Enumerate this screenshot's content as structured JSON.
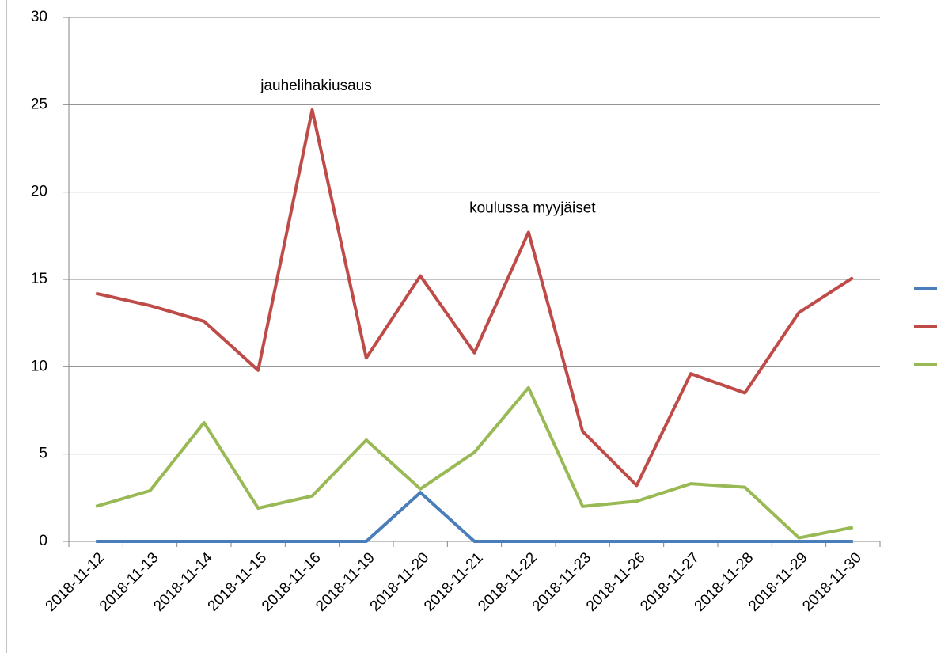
{
  "chart_data": {
    "type": "line",
    "categories": [
      "2018-11-12",
      "2018-11-13",
      "2018-11-14",
      "2018-11-15",
      "2018-11-16",
      "2018-11-19",
      "2018-11-20",
      "2018-11-21",
      "2018-11-22",
      "2018-11-23",
      "2018-11-26",
      "2018-11-27",
      "2018-11-28",
      "2018-11-29",
      "2018-11-30"
    ],
    "series": [
      {
        "color": "#4a7ebb",
        "values": [
          0,
          0,
          0,
          0,
          0,
          0,
          2.8,
          0,
          0,
          0,
          0,
          0,
          0,
          0,
          0
        ]
      },
      {
        "color": "#be4b48",
        "values": [
          14.2,
          13.5,
          12.6,
          9.8,
          24.7,
          10.5,
          15.2,
          10.8,
          17.7,
          6.3,
          3.2,
          9.6,
          8.5,
          13.1,
          15.1
        ]
      },
      {
        "color": "#98b954",
        "values": [
          2.0,
          2.9,
          6.8,
          1.9,
          2.6,
          5.8,
          3.0,
          5.1,
          8.8,
          2.0,
          2.3,
          3.3,
          3.1,
          0.2,
          0.8
        ]
      }
    ],
    "annotations": [
      {
        "text": "jauhelihakiusaus",
        "x": "2018-11-16"
      },
      {
        "text": "koulussa myyjäiset",
        "x": "2018-11-22"
      }
    ],
    "ylim": [
      0,
      30
    ],
    "yticks": [
      0,
      5,
      10,
      15,
      20,
      25,
      30
    ],
    "grid": true,
    "legend": "right"
  }
}
